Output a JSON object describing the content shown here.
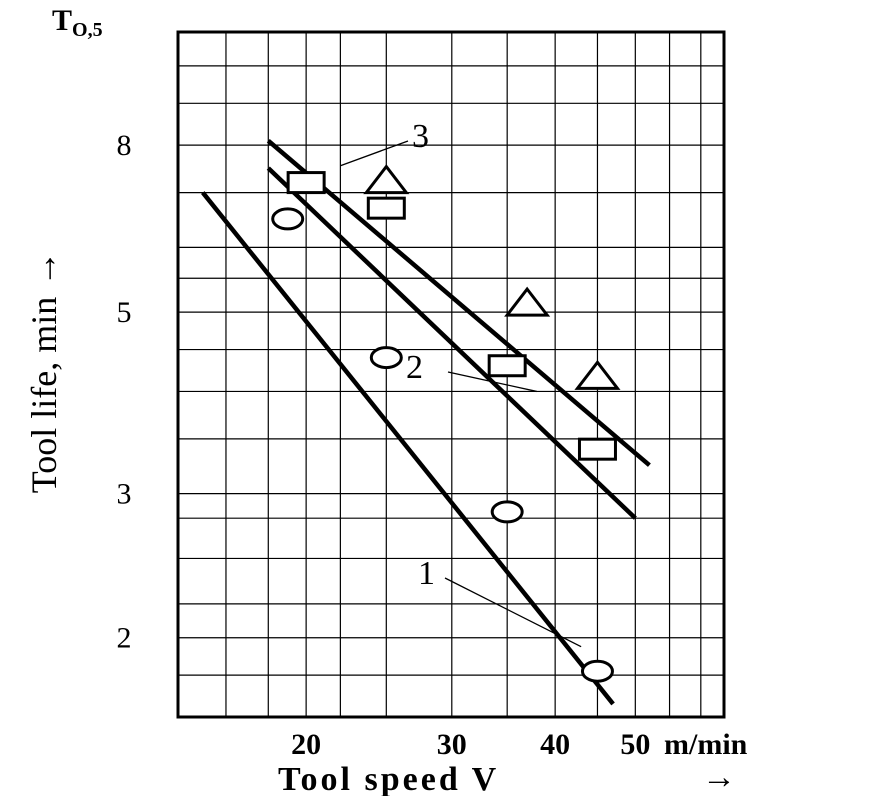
{
  "chart_data": {
    "type": "scatter",
    "y_corner_label": "T",
    "y_corner_subscript": "O,5",
    "ylabel": "Tool life, min",
    "ylabel_arrow": "→",
    "xlabel": "Tool speed V",
    "xlabel_arrow": "→",
    "x_unit": "m/min",
    "x_scale": "log",
    "y_scale": "log",
    "xlim": [
      14,
      64
    ],
    "ylim": [
      1.6,
      11
    ],
    "grid": true,
    "x_ticks": [
      {
        "value": 20,
        "label": "20"
      },
      {
        "value": 30,
        "label": "30"
      },
      {
        "value": 40,
        "label": "40"
      },
      {
        "value": 50,
        "label": "50"
      }
    ],
    "y_ticks": [
      {
        "value": 8,
        "label": "8"
      },
      {
        "value": 5,
        "label": "5"
      },
      {
        "value": 3,
        "label": "3"
      },
      {
        "value": 2,
        "label": "2"
      }
    ],
    "series": [
      {
        "name": "1",
        "marker": "circle",
        "points": [
          {
            "x": 19,
            "y": 6.5
          },
          {
            "x": 25,
            "y": 4.4
          },
          {
            "x": 35,
            "y": 2.85
          },
          {
            "x": 45,
            "y": 1.82
          }
        ],
        "fit_line": [
          {
            "x": 15,
            "y": 7.0
          },
          {
            "x": 47,
            "y": 1.66
          }
        ]
      },
      {
        "name": "2",
        "marker": "square",
        "points": [
          {
            "x": 20,
            "y": 7.2
          },
          {
            "x": 25,
            "y": 6.7
          },
          {
            "x": 35,
            "y": 4.3
          },
          {
            "x": 45,
            "y": 3.4
          }
        ],
        "fit_line": [
          {
            "x": 18,
            "y": 7.5
          },
          {
            "x": 50,
            "y": 2.8
          }
        ]
      },
      {
        "name": "3",
        "marker": "triangle",
        "points": [
          {
            "x": 25,
            "y": 7.2
          },
          {
            "x": 37,
            "y": 5.1
          },
          {
            "x": 45,
            "y": 4.15
          }
        ],
        "fit_line": [
          {
            "x": 18,
            "y": 8.1
          },
          {
            "x": 52,
            "y": 3.25
          }
        ]
      }
    ]
  }
}
